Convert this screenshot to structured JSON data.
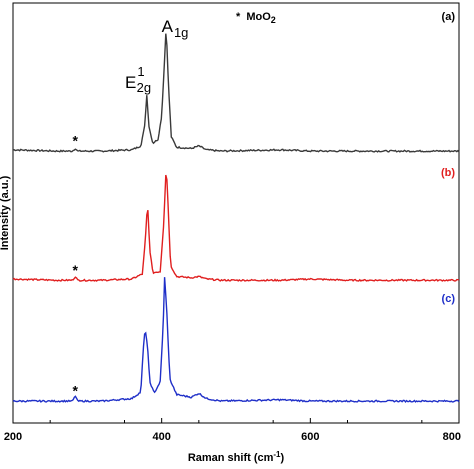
{
  "chart_data": {
    "type": "line",
    "title": "",
    "xlabel": "Raman shift (cm",
    "xlabel_sup": "-1",
    "xlabel_close": ")",
    "ylabel": "Intensity (a.u.)",
    "xlim": [
      200,
      800
    ],
    "x_ticks": [
      "200",
      "400",
      "600",
      "800"
    ],
    "grid": false,
    "note": {
      "star": "*",
      "text": "MoO",
      "sub": "2"
    },
    "peak_labels": {
      "e2g": {
        "main": "E",
        "sup": "1",
        "sub": "2g",
        "x": 383
      },
      "a1g": {
        "main": "A",
        "sub": "1g",
        "x": 408
      }
    },
    "star_marker": "*",
    "star_x": 285,
    "series": [
      {
        "name": "(a)",
        "color": "#3a3a3a",
        "label_color": "#000000",
        "star": true,
        "points": [
          [
            200,
            0.04
          ],
          [
            260,
            0.03
          ],
          [
            280,
            0.03
          ],
          [
            284,
            0.05
          ],
          [
            287,
            0.03
          ],
          [
            320,
            0.03
          ],
          [
            360,
            0.04
          ],
          [
            372,
            0.07
          ],
          [
            377,
            0.22
          ],
          [
            380,
            0.46
          ],
          [
            383,
            0.22
          ],
          [
            388,
            0.09
          ],
          [
            395,
            0.12
          ],
          [
            400,
            0.3
          ],
          [
            404,
            0.74
          ],
          [
            406,
            1.0
          ],
          [
            409,
            0.55
          ],
          [
            413,
            0.14
          ],
          [
            420,
            0.06
          ],
          [
            440,
            0.05
          ],
          [
            450,
            0.07
          ],
          [
            460,
            0.04
          ],
          [
            480,
            0.03
          ],
          [
            560,
            0.04
          ],
          [
            600,
            0.03
          ],
          [
            650,
            0.03
          ],
          [
            720,
            0.03
          ],
          [
            760,
            0.03
          ],
          [
            800,
            0.03
          ]
        ]
      },
      {
        "name": "(b)",
        "color": "#e01f1f",
        "label_color": "#e01f1f",
        "star": true,
        "points": [
          [
            200,
            0.04
          ],
          [
            260,
            0.03
          ],
          [
            280,
            0.03
          ],
          [
            284,
            0.06
          ],
          [
            287,
            0.03
          ],
          [
            320,
            0.03
          ],
          [
            360,
            0.04
          ],
          [
            374,
            0.08
          ],
          [
            378,
            0.35
          ],
          [
            381,
            0.65
          ],
          [
            384,
            0.28
          ],
          [
            388,
            0.09
          ],
          [
            398,
            0.1
          ],
          [
            403,
            0.5
          ],
          [
            406,
            0.95
          ],
          [
            408,
            0.72
          ],
          [
            412,
            0.15
          ],
          [
            420,
            0.06
          ],
          [
            440,
            0.05
          ],
          [
            450,
            0.06
          ],
          [
            460,
            0.04
          ],
          [
            480,
            0.03
          ],
          [
            560,
            0.03
          ],
          [
            600,
            0.04
          ],
          [
            650,
            0.03
          ],
          [
            720,
            0.03
          ],
          [
            760,
            0.03
          ],
          [
            800,
            0.03
          ]
        ]
      },
      {
        "name": "(c)",
        "color": "#1f2fc8",
        "label_color": "#1f2fc8",
        "star": true,
        "points": [
          [
            200,
            0.03
          ],
          [
            260,
            0.03
          ],
          [
            280,
            0.03
          ],
          [
            284,
            0.07
          ],
          [
            287,
            0.03
          ],
          [
            320,
            0.03
          ],
          [
            360,
            0.05
          ],
          [
            372,
            0.1
          ],
          [
            376,
            0.5
          ],
          [
            378,
            0.58
          ],
          [
            381,
            0.45
          ],
          [
            384,
            0.18
          ],
          [
            390,
            0.09
          ],
          [
            398,
            0.18
          ],
          [
            402,
            0.6
          ],
          [
            404,
            0.98
          ],
          [
            407,
            0.7
          ],
          [
            411,
            0.2
          ],
          [
            420,
            0.08
          ],
          [
            440,
            0.06
          ],
          [
            450,
            0.09
          ],
          [
            460,
            0.05
          ],
          [
            480,
            0.03
          ],
          [
            560,
            0.04
          ],
          [
            600,
            0.03
          ],
          [
            650,
            0.03
          ],
          [
            720,
            0.03
          ],
          [
            760,
            0.03
          ],
          [
            800,
            0.03
          ]
        ]
      }
    ]
  }
}
